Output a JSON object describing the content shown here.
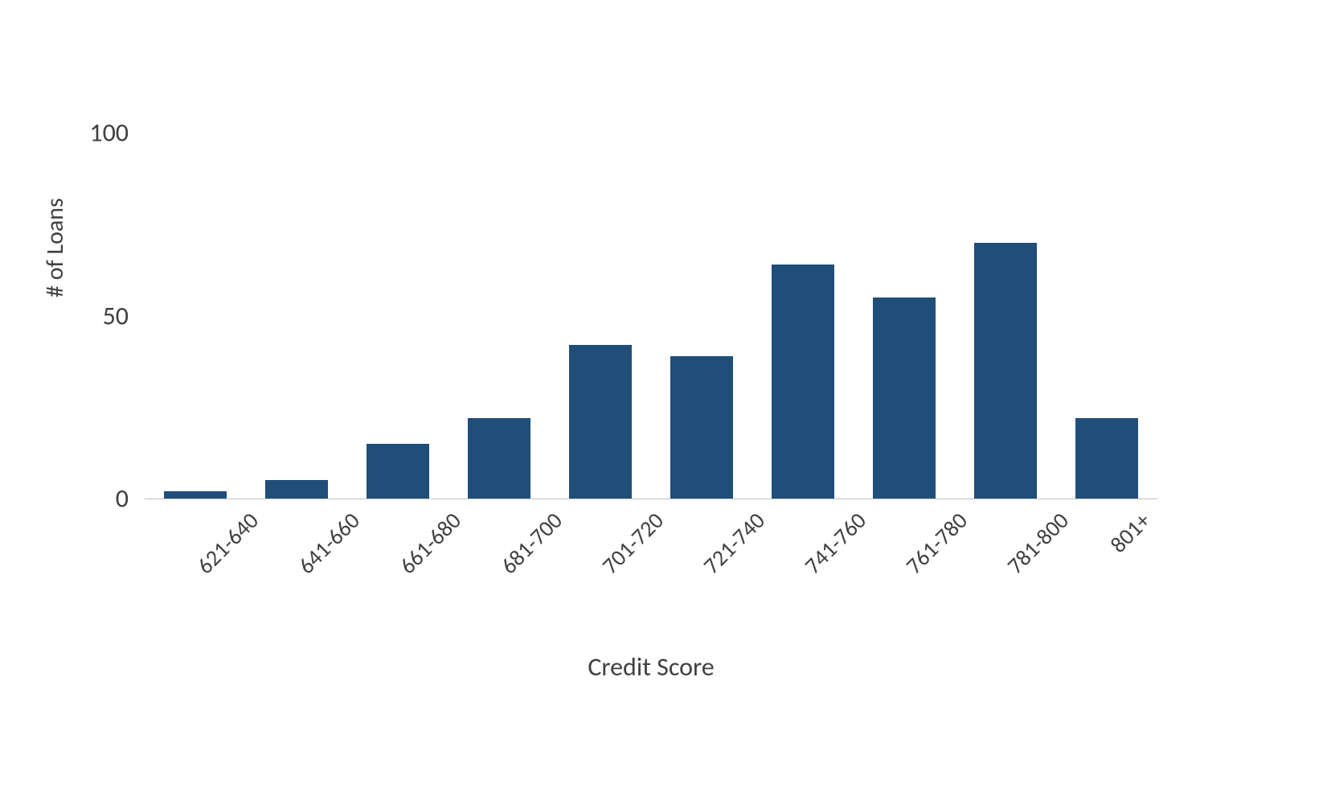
{
  "chart": {
    "type": "bar",
    "background_color": "#ffffff",
    "bar_color": "#1f4e79",
    "axis_line_color": "#bfbfbf",
    "text_color": "#404040",
    "font_family": "Calibri",
    "y_axis": {
      "title": "# of Loans",
      "title_fontsize": 30,
      "min": 0,
      "max": 110,
      "ticks": [
        0,
        50,
        100
      ],
      "tick_fontsize": 32
    },
    "x_axis": {
      "title": "Credit Score",
      "title_fontsize": 32,
      "label_fontsize": 28,
      "label_rotation_deg": -45
    },
    "bar_width_ratio": 0.62,
    "categories": [
      "621-640",
      "641-660",
      "661-680",
      "681-700",
      "701-720",
      "721-740",
      "741-760",
      "761-780",
      "781-800",
      "801+"
    ],
    "values": [
      2,
      5,
      15,
      22,
      42,
      39,
      64,
      55,
      70,
      22
    ]
  }
}
